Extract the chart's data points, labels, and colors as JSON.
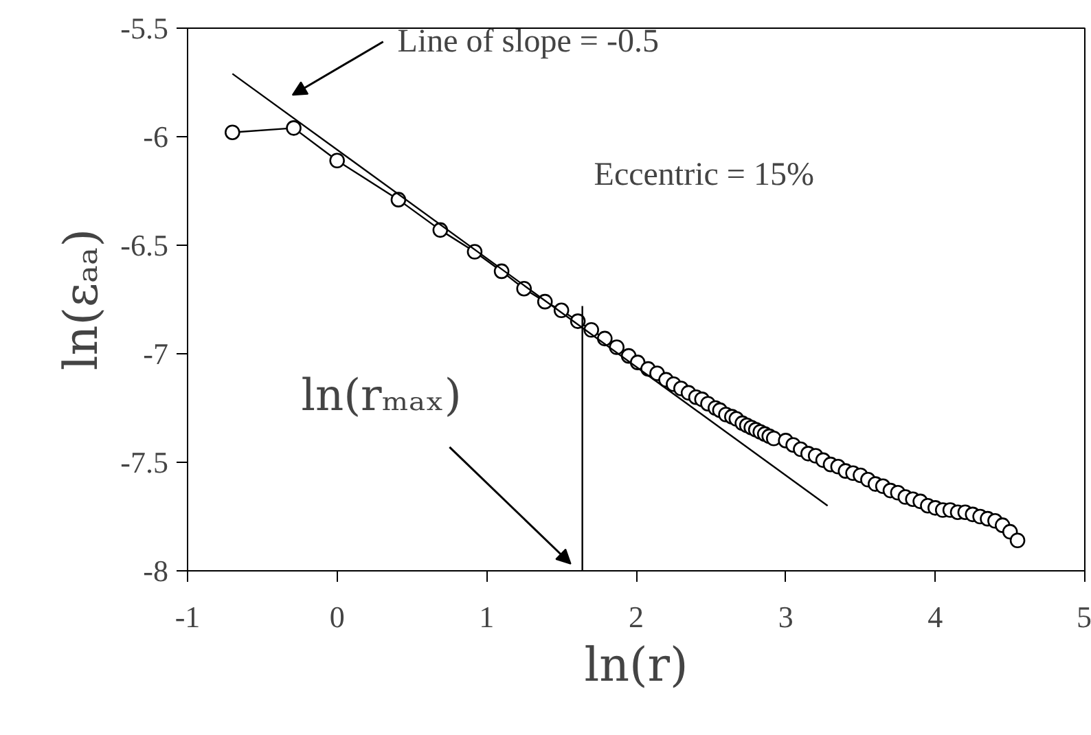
{
  "chart_data": {
    "type": "line",
    "xlabel": "ln(r)",
    "ylabel": "ln(εₐₐ)",
    "xlim": [
      -1,
      5
    ],
    "ylim": [
      -8,
      -5.5
    ],
    "xticks": [
      -1,
      0,
      1,
      2,
      3,
      4,
      5
    ],
    "yticks": [
      -8,
      -7.5,
      -7,
      -6.5,
      -6,
      -5.5
    ],
    "grid": false,
    "series": [
      {
        "marker": "circle",
        "color": "#000000",
        "x": [
          -0.7,
          -0.29,
          0.0,
          0.41,
          0.69,
          0.92,
          1.1,
          1.25,
          1.39,
          1.5,
          1.61,
          1.7,
          1.79,
          1.87,
          1.95,
          2.01,
          2.08,
          2.14,
          2.2,
          2.25,
          2.3,
          2.35,
          2.4,
          2.44,
          2.48,
          2.53,
          2.56,
          2.6,
          2.64,
          2.67,
          2.71,
          2.74,
          2.77,
          2.8,
          2.83,
          2.86,
          2.89,
          2.92,
          3.0,
          3.05,
          3.1,
          3.15,
          3.2,
          3.25,
          3.3,
          3.35,
          3.4,
          3.45,
          3.5,
          3.55,
          3.6,
          3.65,
          3.7,
          3.75,
          3.8,
          3.85,
          3.9,
          3.95,
          4.0,
          4.05,
          4.1,
          4.15,
          4.2,
          4.25,
          4.3,
          4.35,
          4.4,
          4.45,
          4.5,
          4.55
        ],
        "values": [
          -5.98,
          -5.96,
          -6.11,
          -6.29,
          -6.43,
          -6.53,
          -6.62,
          -6.7,
          -6.76,
          -6.8,
          -6.85,
          -6.89,
          -6.93,
          -6.97,
          -7.01,
          -7.04,
          -7.07,
          -7.09,
          -7.12,
          -7.14,
          -7.16,
          -7.18,
          -7.2,
          -7.21,
          -7.23,
          -7.25,
          -7.26,
          -7.28,
          -7.29,
          -7.3,
          -7.32,
          -7.33,
          -7.34,
          -7.35,
          -7.36,
          -7.37,
          -7.38,
          -7.39,
          -7.4,
          -7.42,
          -7.44,
          -7.46,
          -7.47,
          -7.49,
          -7.51,
          -7.52,
          -7.54,
          -7.55,
          -7.56,
          -7.58,
          -7.6,
          -7.61,
          -7.63,
          -7.64,
          -7.66,
          -7.67,
          -7.68,
          -7.7,
          -7.71,
          -7.72,
          -7.72,
          -7.73,
          -7.73,
          -7.74,
          -7.75,
          -7.76,
          -7.77,
          -7.79,
          -7.82,
          -7.86
        ]
      },
      {
        "marker": "none",
        "color": "#000000",
        "x": [
          -0.7,
          3.28
        ],
        "values": [
          -5.71,
          -7.7
        ]
      },
      {
        "marker": "none",
        "color": "#000000",
        "x": [
          1.64,
          1.64
        ],
        "values": [
          -8,
          -6.78
        ]
      }
    ],
    "annotations": [
      "Line of slope = -0.5",
      "ln(rₘₐₓ)",
      "Eccentric = 15%"
    ]
  }
}
